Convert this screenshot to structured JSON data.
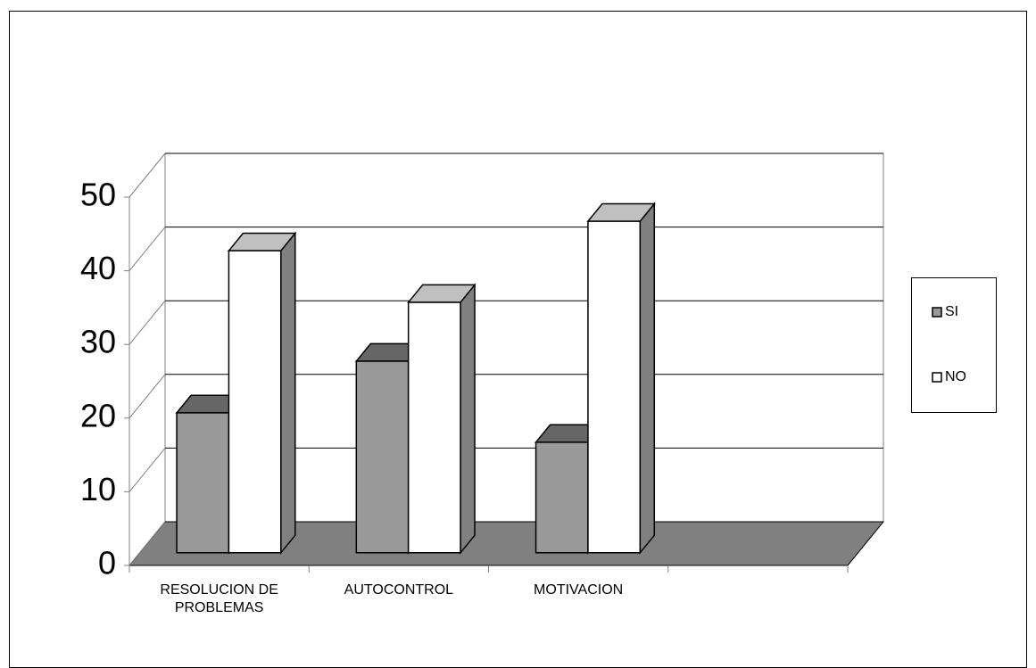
{
  "chart_data": {
    "type": "bar3d",
    "categories": [
      "RESOLUCION DE PROBLEMAS",
      "AUTOCONTROL",
      "MOTIVACION",
      null
    ],
    "series": [
      {
        "name": "SI",
        "color": "#999999",
        "values": [
          19,
          26,
          15,
          null
        ]
      },
      {
        "name": "NO",
        "color": "#ffffff",
        "values": [
          41,
          34,
          45,
          null
        ]
      }
    ],
    "ylim": [
      0,
      50
    ],
    "yticks": [
      0,
      10,
      20,
      30,
      40,
      50
    ],
    "grid": true,
    "legend": "right"
  }
}
